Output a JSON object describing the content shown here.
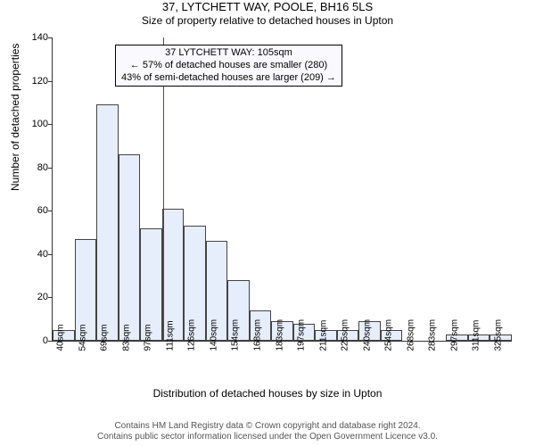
{
  "title": "37, LYTCHETT WAY, POOLE, BH16 5LS",
  "subtitle": "Size of property relative to detached houses in Upton",
  "ylabel": "Number of detached properties",
  "xlabel": "Distribution of detached houses by size in Upton",
  "license_line1": "Contains HM Land Registry data © Crown copyright and database right 2024.",
  "license_line2": "Contains public sector information licensed under the Open Government Licence v3.0.",
  "chart": {
    "type": "histogram",
    "ylim": [
      0,
      140
    ],
    "yticks": [
      0,
      20,
      40,
      60,
      80,
      100,
      120,
      140
    ],
    "bar_fill": "#e6edfb",
    "bar_stroke": "#444444",
    "marker_color": "#ff0000",
    "marker_x_value": 105,
    "background": "#ffffff",
    "categories": [
      "40sqm",
      "54sqm",
      "69sqm",
      "83sqm",
      "97sqm",
      "111sqm",
      "126sqm",
      "140sqm",
      "154sqm",
      "168sqm",
      "183sqm",
      "197sqm",
      "211sqm",
      "225sqm",
      "240sqm",
      "254sqm",
      "268sqm",
      "283sqm",
      "297sqm",
      "311sqm",
      "325sqm"
    ],
    "values": [
      5,
      47,
      109,
      86,
      52,
      61,
      53,
      46,
      28,
      14,
      9,
      8,
      5,
      5,
      9,
      5,
      0,
      0,
      3,
      3,
      3
    ]
  },
  "annotation": {
    "line1": "37 LYTCHETT WAY: 105sqm",
    "line2": "← 57% of detached houses are smaller (280)",
    "line3": "43% of semi-detached houses are larger (209) →"
  }
}
